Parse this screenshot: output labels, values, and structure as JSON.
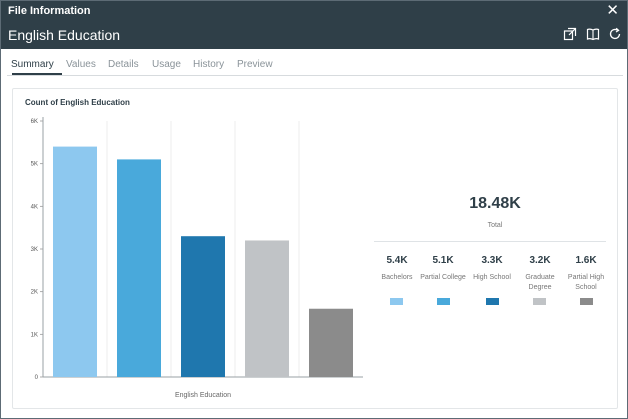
{
  "window": {
    "title": "File Information",
    "close_glyph": "✕"
  },
  "header": {
    "field_name": "English Education",
    "icons": [
      "export-icon",
      "book-icon",
      "refresh-icon"
    ]
  },
  "tabs": [
    {
      "label": "Summary",
      "active": true
    },
    {
      "label": "Values",
      "active": false
    },
    {
      "label": "Details",
      "active": false
    },
    {
      "label": "Usage",
      "active": false
    },
    {
      "label": "History",
      "active": false
    },
    {
      "label": "Preview",
      "active": false
    }
  ],
  "card": {
    "title": "Count of English Education"
  },
  "chart_data": {
    "type": "bar",
    "title": "Count of English Education",
    "xlabel": "English Education",
    "ylabel": "",
    "categories": [
      "Bachelors",
      "Partial College",
      "High School",
      "Graduate Degree",
      "Partial High School"
    ],
    "values": [
      5400,
      5100,
      3300,
      3200,
      1600
    ],
    "colors": [
      "#8dc8ef",
      "#49a9db",
      "#1f77ae",
      "#c0c3c6",
      "#8b8b8b"
    ],
    "ylim": [
      0,
      6000
    ],
    "yticks": [
      0,
      1000,
      2000,
      3000,
      4000,
      5000,
      6000
    ],
    "ytick_labels": [
      "0",
      "1K",
      "2K",
      "3K",
      "4K",
      "5K",
      "6K"
    ],
    "grid": true,
    "legend": "none"
  },
  "summary": {
    "total_value": "18.48K",
    "total_label": "Total",
    "stats": [
      {
        "value": "5.4K",
        "label": "Bachelors",
        "color": "#8dc8ef"
      },
      {
        "value": "5.1K",
        "label": "Partial College",
        "color": "#49a9db"
      },
      {
        "value": "3.3K",
        "label": "High School",
        "color": "#1f77ae"
      },
      {
        "value": "3.2K",
        "label": "Graduate Degree",
        "color": "#c0c3c6"
      },
      {
        "value": "1.6K",
        "label": "Partial High School",
        "color": "#8b8b8b"
      }
    ]
  }
}
